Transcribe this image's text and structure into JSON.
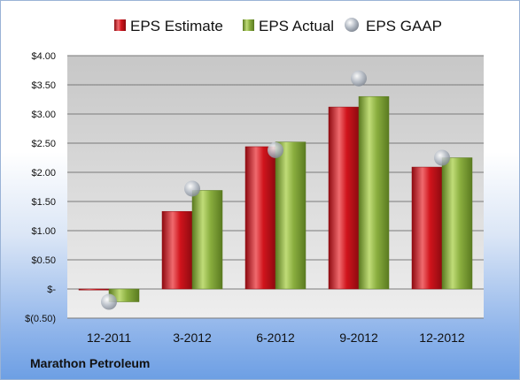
{
  "company": "Marathon Petroleum",
  "legend": [
    "EPS Estimate",
    "EPS Actual",
    "EPS GAAP"
  ],
  "colors": {
    "estimate": "#d0141c",
    "estimate_light": "#f06a6e",
    "estimate_dark": "#8e0a10",
    "actual": "#8aae3f",
    "actual_light": "#c0dc78",
    "actual_dark": "#5a7a20",
    "gaap": "#b3bac4",
    "plot_top": "#c7c7c7",
    "plot_bottom": "#eeeeee",
    "grid": "#7a7a7a"
  },
  "chart_data": {
    "type": "bar",
    "categories": [
      "12-2011",
      "3-2012",
      "6-2012",
      "9-2012",
      "12-2012"
    ],
    "series": [
      {
        "name": "EPS Estimate",
        "kind": "bar",
        "values": [
          0.0,
          1.33,
          2.44,
          3.12,
          2.09
        ]
      },
      {
        "name": "EPS Actual",
        "kind": "bar",
        "values": [
          -0.22,
          1.69,
          2.52,
          3.3,
          2.25
        ]
      },
      {
        "name": "EPS GAAP",
        "kind": "scatter",
        "values": [
          -0.22,
          1.72,
          2.38,
          3.61,
          2.25
        ]
      }
    ],
    "ylim": [
      -0.5,
      4.0
    ],
    "yticks": [
      -0.5,
      0.0,
      0.5,
      1.0,
      1.5,
      2.0,
      2.5,
      3.0,
      3.5,
      4.0
    ],
    "ytick_labels": [
      "$(0.50)",
      "$-",
      "$0.50",
      "$1.00",
      "$1.50",
      "$2.00",
      "$2.50",
      "$3.00",
      "$3.50",
      "$4.00"
    ],
    "grid": true,
    "legend_position": "top"
  }
}
